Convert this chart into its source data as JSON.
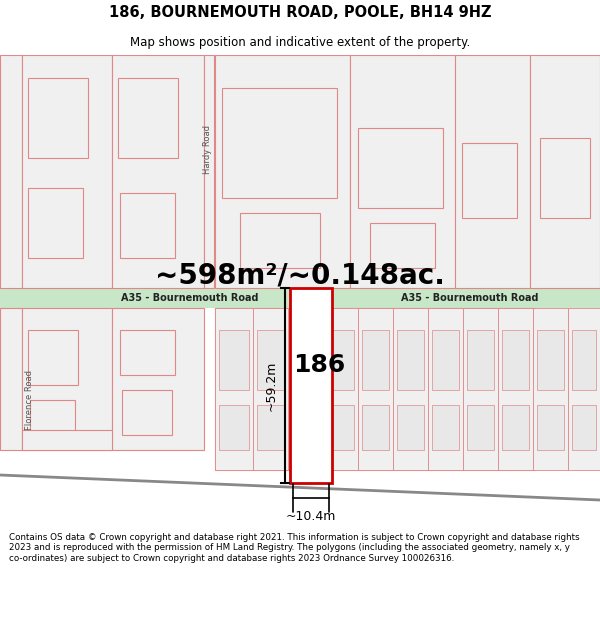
{
  "title": "186, BOURNEMOUTH ROAD, POOLE, BH14 9HZ",
  "subtitle": "Map shows position and indicative extent of the property.",
  "size_label": "~598m²/~0.148ac.",
  "dim_width": "~10.4m",
  "dim_height": "~59.2m",
  "label_186": "186",
  "road_label_left": "A35 - Bournemouth Road",
  "road_label_right": "A35 - Bournemouth Road",
  "road_label_vertical": "Hardy Road",
  "road_label_vertical2": "Florence Road",
  "footer_text": "Contains OS data © Crown copyright and database right 2021. This information is subject to Crown copyright and database rights 2023 and is reproduced with the permission of HM Land Registry. The polygons (including the associated geometry, namely x, y co-ordinates) are subject to Crown copyright and database rights 2023 Ordnance Survey 100026316.",
  "bg_map_color": "#ffffff",
  "road_band_color": "#c8e6c8",
  "building_fill": "#f0f0f0",
  "building_stroke": "#e08888",
  "highlight_fill": "#ffffff",
  "highlight_stroke": "#cc0000",
  "footer_bg": "#ffffff",
  "title_area_bg": "#ffffff"
}
